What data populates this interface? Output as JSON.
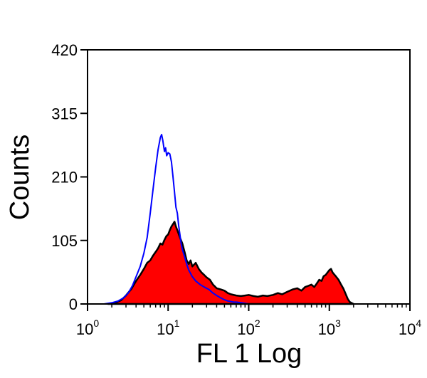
{
  "chart_data": {
    "type": "area",
    "xlabel": "FL 1 Log",
    "ylabel": "Counts",
    "xscale": "log",
    "xlim": [
      1,
      10000
    ],
    "ylim": [
      0,
      420
    ],
    "x_ticks": [
      {
        "value": 1,
        "base": "10",
        "exp": "0"
      },
      {
        "value": 10,
        "base": "10",
        "exp": "1"
      },
      {
        "value": 100,
        "base": "10",
        "exp": "2"
      },
      {
        "value": 1000,
        "base": "10",
        "exp": "3"
      },
      {
        "value": 10000,
        "base": "10",
        "exp": "4"
      }
    ],
    "y_ticks": [
      "0",
      "105",
      "210",
      "315",
      "420"
    ],
    "series": [
      {
        "style": "filled",
        "fill_color": "#ff0000",
        "edge_color": "#000000",
        "x": [
          1.8,
          2.2,
          2.6,
          3.0,
          3.5,
          4.0,
          4.5,
          5.0,
          5.5,
          6.0,
          6.5,
          7.0,
          7.5,
          8.0,
          8.5,
          9.0,
          9.5,
          10.0,
          10.5,
          11.0,
          11.5,
          12.0,
          12.5,
          13.0,
          13.5,
          14.0,
          15.0,
          16.0,
          17.0,
          18.0,
          19.0,
          20.0,
          22.0,
          24.0,
          26.0,
          28.0,
          30.0,
          33.0,
          36.0,
          40.0,
          45.0,
          50.0,
          55.0,
          60.0,
          70.0,
          80.0,
          90.0,
          100.0,
          115.0,
          130.0,
          150.0,
          170.0,
          200.0,
          230.0,
          260.0,
          300.0,
          350.0,
          400.0,
          450.0,
          500.0,
          550.0,
          600.0,
          650.0,
          700.0,
          750.0,
          800.0,
          850.0,
          900.0,
          950.0,
          1000.0,
          1050.0,
          1100.0,
          1200.0,
          1300.0,
          1400.0,
          1500.0,
          1600.0,
          1700.0,
          1800.0,
          2000.0
        ],
        "y": [
          0,
          2,
          6,
          14,
          25,
          38,
          48,
          58,
          68,
          72,
          80,
          86,
          92,
          100,
          98,
          106,
          112,
          115,
          122,
          128,
          132,
          136,
          128,
          122,
          116,
          110,
          100,
          86,
          72,
          66,
          72,
          62,
          68,
          58,
          52,
          48,
          44,
          40,
          32,
          26,
          24,
          22,
          18,
          16,
          14,
          13,
          14,
          15,
          13,
          12,
          14,
          13,
          15,
          18,
          16,
          20,
          24,
          26,
          22,
          28,
          30,
          32,
          28,
          34,
          40,
          38,
          46,
          48,
          52,
          56,
          58,
          52,
          46,
          40,
          32,
          25,
          16,
          8,
          3,
          0
        ]
      },
      {
        "style": "line",
        "line_color": "#0000ff",
        "x": [
          1.6,
          2.0,
          2.4,
          2.8,
          3.2,
          3.6,
          4.0,
          4.5,
          5.0,
          5.5,
          6.0,
          6.5,
          7.0,
          7.5,
          8.0,
          8.3,
          8.6,
          9.0,
          9.3,
          9.6,
          10.0,
          10.5,
          11.0,
          11.5,
          12.0,
          12.5,
          13.0,
          13.5,
          14.0,
          14.5,
          15.0,
          16.0,
          17.0,
          18.0,
          20.0,
          22.0,
          25.0,
          28.0,
          32.0,
          36.0,
          40.0,
          45.0,
          50.0,
          55.0,
          60.0,
          65.0,
          70.0,
          80.0,
          90.0,
          100.0,
          110.0
        ],
        "y": [
          0,
          2,
          5,
          10,
          18,
          30,
          45,
          62,
          84,
          110,
          150,
          190,
          225,
          255,
          275,
          280,
          270,
          252,
          258,
          245,
          250,
          248,
          235,
          210,
          185,
          160,
          150,
          130,
          115,
          100,
          90,
          78,
          66,
          56,
          45,
          38,
          32,
          28,
          24,
          18,
          14,
          10,
          7,
          5,
          4,
          3,
          3,
          2,
          1,
          0,
          0
        ]
      }
    ]
  }
}
